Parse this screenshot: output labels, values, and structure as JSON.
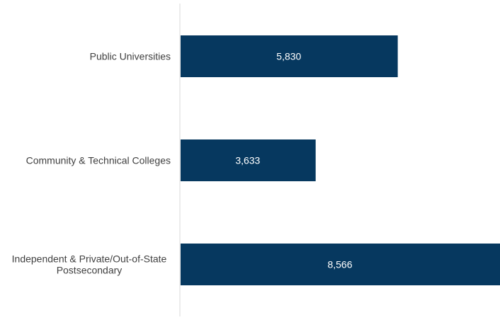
{
  "chart_data": {
    "type": "bar",
    "orientation": "horizontal",
    "categories": [
      [
        "Public Universities"
      ],
      [
        "Community & Technical Colleges"
      ],
      [
        "Independent & Private/Out-of-State",
        "Postsecondary"
      ]
    ],
    "values": [
      5830,
      3633,
      8566
    ],
    "value_labels": [
      "5,830",
      "3,633",
      "8,566"
    ],
    "title": "",
    "xlabel": "",
    "ylabel": "",
    "xlim": [
      0,
      8566
    ],
    "grid": false,
    "legend": "none",
    "bar_color": "#06385f",
    "axis_color": "#d9d9d9"
  }
}
